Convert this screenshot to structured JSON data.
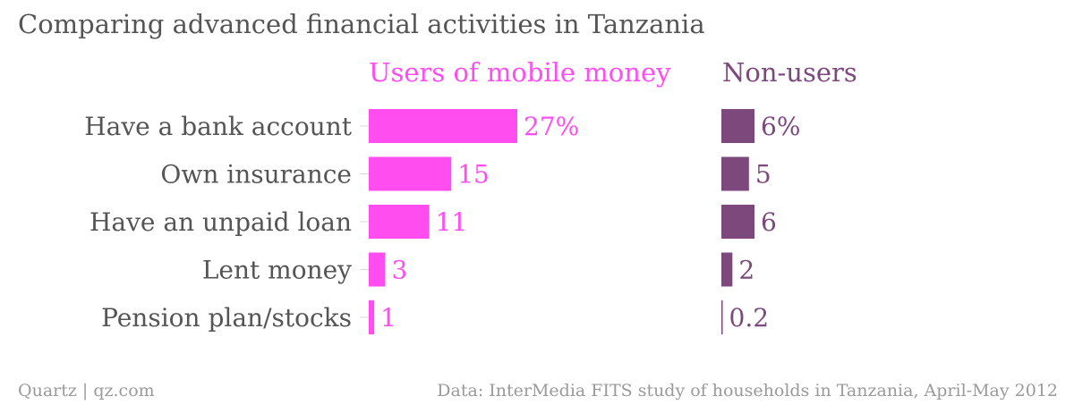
{
  "title": "Comparing advanced financial activities in Tanzania",
  "footer": {
    "brand": "Quartz | qz.com",
    "source": "Data: InterMedia FITS study of households in Tanzania, April-May 2012"
  },
  "colors": {
    "users": "#ff4df0",
    "nonusers": "#7d497d",
    "label": "#555555",
    "footer": "#9a9a9a"
  },
  "chart_data": {
    "type": "bar",
    "orientation": "horizontal",
    "categories": [
      "Have a bank account",
      "Own insurance",
      "Have an unpaid loan",
      "Lent money",
      "Pension plan/stocks"
    ],
    "series": [
      {
        "name": "Users of mobile money",
        "values": [
          27,
          15,
          11,
          3,
          1
        ],
        "labels": [
          "27%",
          "15",
          "11",
          "3",
          "1"
        ]
      },
      {
        "name": "Non-users",
        "values": [
          6,
          5,
          6,
          2,
          0.2
        ],
        "labels": [
          "6%",
          "5",
          "6",
          "2",
          "0.2"
        ]
      }
    ],
    "unit": "%",
    "xlim": [
      0,
      27
    ],
    "grid": false,
    "legend": "panel titles above each column"
  }
}
